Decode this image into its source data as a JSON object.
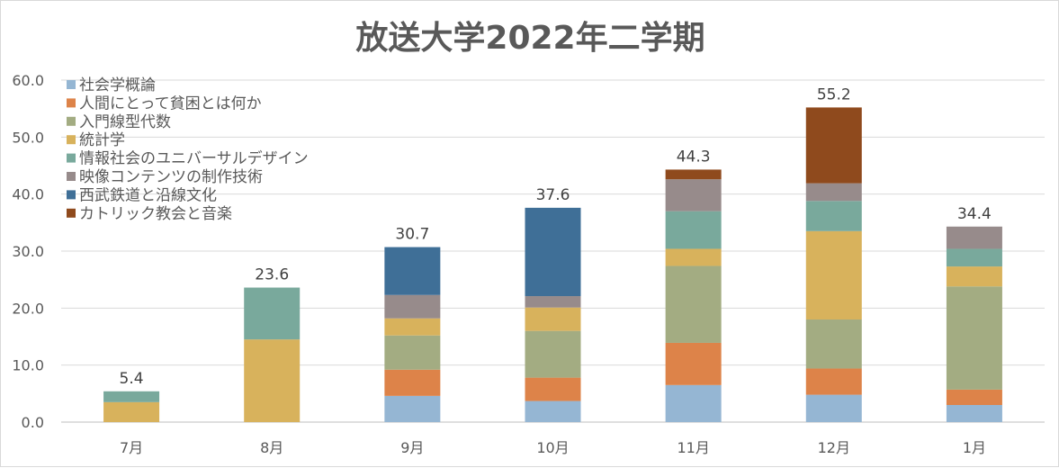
{
  "chart_data": {
    "type": "bar",
    "stacked": true,
    "title": "放送大学2022年二学期",
    "categories": [
      "7月",
      "8月",
      "9月",
      "10月",
      "11月",
      "12月",
      "1月"
    ],
    "ylim": [
      0,
      60
    ],
    "yticks": [
      "0.0",
      "10.0",
      "20.0",
      "30.0",
      "40.0",
      "50.0",
      "60.0"
    ],
    "totals": [
      "5.4",
      "23.6",
      "30.7",
      "37.6",
      "44.3",
      "55.2",
      "34.4"
    ],
    "legend_position": "top-left",
    "grid": true,
    "series": [
      {
        "name": "社会学概論",
        "color": "#95b6d3",
        "values": [
          0,
          0,
          4.6,
          3.7,
          6.5,
          4.8,
          3.0
        ]
      },
      {
        "name": "人間にとって貧困とは何か",
        "color": "#dd8349",
        "values": [
          0,
          0,
          4.6,
          4.1,
          7.4,
          4.6,
          2.7
        ]
      },
      {
        "name": "入門線型代数",
        "color": "#a3ac82",
        "values": [
          0,
          0,
          6.0,
          8.2,
          13.5,
          8.6,
          18.1
        ]
      },
      {
        "name": "統計学",
        "color": "#d8b25c",
        "values": [
          3.5,
          14.5,
          3.0,
          4.1,
          3.0,
          15.5,
          3.5
        ]
      },
      {
        "name": "情報社会のユニバーサルデザイン",
        "color": "#79a99c",
        "values": [
          1.9,
          9.1,
          0,
          0,
          6.6,
          5.3,
          3.1
        ]
      },
      {
        "name": "映像コンテンツの制作技術",
        "color": "#978b8b",
        "values": [
          0,
          0,
          4.1,
          2.0,
          5.6,
          3.1,
          3.9
        ]
      },
      {
        "name": "西武鉄道と沿線文化",
        "color": "#3f6f97",
        "values": [
          0,
          0,
          8.4,
          15.5,
          0,
          0,
          0
        ]
      },
      {
        "name": "カトリック教会と音楽",
        "color": "#8f4a1d",
        "values": [
          0,
          0,
          0,
          0,
          1.7,
          13.3,
          0
        ]
      }
    ]
  }
}
